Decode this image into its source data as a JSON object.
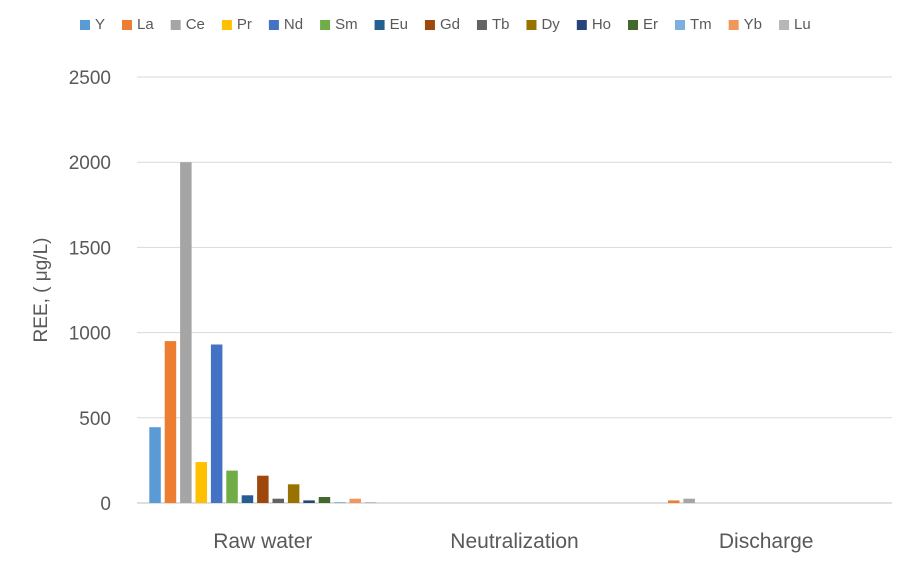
{
  "chart_data": {
    "type": "bar",
    "title": "",
    "xlabel": "",
    "ylabel": "REE, ( μg/L)",
    "ylim": [
      0,
      2500
    ],
    "yticks": [
      0,
      500,
      1000,
      1500,
      2000,
      2500
    ],
    "grid": true,
    "legend_position": "top",
    "categories": [
      "Raw water",
      "Neutralization",
      "Discharge"
    ],
    "series": [
      {
        "name": "Y",
        "color": "#5B9BD5",
        "values": [
          445,
          0,
          0
        ]
      },
      {
        "name": "La",
        "color": "#ED7D31",
        "values": [
          950,
          0,
          15
        ]
      },
      {
        "name": "Ce",
        "color": "#A5A5A5",
        "values": [
          2000,
          0,
          25
        ]
      },
      {
        "name": "Pr",
        "color": "#FFC000",
        "values": [
          240,
          0,
          0
        ]
      },
      {
        "name": "Nd",
        "color": "#4472C4",
        "values": [
          930,
          0,
          0
        ]
      },
      {
        "name": "Sm",
        "color": "#70AD47",
        "values": [
          190,
          0,
          0
        ]
      },
      {
        "name": "Eu",
        "color": "#255E91",
        "values": [
          45,
          0,
          0
        ]
      },
      {
        "name": "Gd",
        "color": "#9E480E",
        "values": [
          160,
          0,
          0
        ]
      },
      {
        "name": "Tb",
        "color": "#636363",
        "values": [
          25,
          0,
          0
        ]
      },
      {
        "name": "Dy",
        "color": "#997300",
        "values": [
          110,
          0,
          0
        ]
      },
      {
        "name": "Ho",
        "color": "#264478",
        "values": [
          15,
          0,
          0
        ]
      },
      {
        "name": "Er",
        "color": "#43682B",
        "values": [
          35,
          0,
          0
        ]
      },
      {
        "name": "Tm",
        "color": "#7CAFDD",
        "values": [
          5,
          0,
          0
        ]
      },
      {
        "name": "Yb",
        "color": "#F1975A",
        "values": [
          25,
          0,
          0
        ]
      },
      {
        "name": "Lu",
        "color": "#B7B7B7",
        "values": [
          5,
          0,
          0
        ]
      }
    ]
  }
}
